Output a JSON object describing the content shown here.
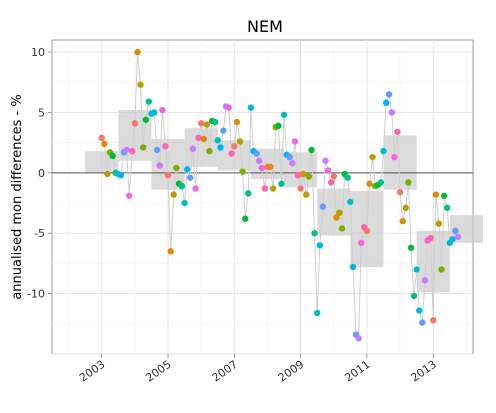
{
  "chart_data": {
    "type": "scatter",
    "title": "NEM",
    "xlabel": "",
    "ylabel": "annualised mon differences - %",
    "xlim": [
      2001.5,
      2014.2
    ],
    "ylim": [
      -15,
      11
    ],
    "x_ticks": [
      2003,
      2005,
      2007,
      2009,
      2011,
      2013
    ],
    "y_ticks": [
      -10,
      -5,
      0,
      5,
      10
    ],
    "grid": true,
    "reference_line": 0,
    "legend": "none",
    "annual_bands": [
      {
        "year": 2003,
        "y_min": 0,
        "y_max": 1.8
      },
      {
        "year": 2004,
        "y_min": 1,
        "y_max": 5.2
      },
      {
        "year": 2005,
        "y_min": -1.4,
        "y_max": 2.8
      },
      {
        "year": 2006,
        "y_min": 0.5,
        "y_max": 3.7
      },
      {
        "year": 2007,
        "y_min": 0.2,
        "y_max": 2.7
      },
      {
        "year": 2008,
        "y_min": -0.5,
        "y_max": 2.0
      },
      {
        "year": 2009,
        "y_min": -1.2,
        "y_max": 1.7
      },
      {
        "year": 2010,
        "y_min": -5.2,
        "y_max": -1.3
      },
      {
        "year": 2011,
        "y_min": -7.8,
        "y_max": -1.5
      },
      {
        "year": 2012,
        "y_min": -1.4,
        "y_max": 3.1
      },
      {
        "year": 2013,
        "y_min": -9.9,
        "y_max": -4.8
      },
      {
        "year": 2014,
        "y_min": -5.8,
        "y_max": -3.5
      }
    ],
    "points": [
      {
        "x": 2003.0,
        "y": 2.9
      },
      {
        "x": 2003.08,
        "y": 2.4
      },
      {
        "x": 2003.17,
        "y": -0.1
      },
      {
        "x": 2003.25,
        "y": 1.7
      },
      {
        "x": 2003.33,
        "y": 1.4
      },
      {
        "x": 2003.42,
        "y": 0
      },
      {
        "x": 2003.5,
        "y": -0.1
      },
      {
        "x": 2003.58,
        "y": -0.2
      },
      {
        "x": 2003.67,
        "y": 1.7
      },
      {
        "x": 2003.75,
        "y": 1.9
      },
      {
        "x": 2003.83,
        "y": -1.9
      },
      {
        "x": 2003.92,
        "y": 1.8
      },
      {
        "x": 2004.0,
        "y": 4.1
      },
      {
        "x": 2004.08,
        "y": 10
      },
      {
        "x": 2004.17,
        "y": 7.3
      },
      {
        "x": 2004.25,
        "y": 2.1
      },
      {
        "x": 2004.33,
        "y": 4.4
      },
      {
        "x": 2004.42,
        "y": 5.9
      },
      {
        "x": 2004.5,
        "y": 4.9
      },
      {
        "x": 2004.58,
        "y": 5.0
      },
      {
        "x": 2004.67,
        "y": 1.9
      },
      {
        "x": 2004.75,
        "y": 0.6
      },
      {
        "x": 2004.83,
        "y": 5.2
      },
      {
        "x": 2004.92,
        "y": 2.2
      },
      {
        "x": 2005.0,
        "y": -0.2
      },
      {
        "x": 2005.08,
        "y": -6.5
      },
      {
        "x": 2005.17,
        "y": -1.8
      },
      {
        "x": 2005.25,
        "y": 0.4
      },
      {
        "x": 2005.33,
        "y": -0.9
      },
      {
        "x": 2005.42,
        "y": -1.1
      },
      {
        "x": 2005.5,
        "y": -2.5
      },
      {
        "x": 2005.58,
        "y": 0.3
      },
      {
        "x": 2005.67,
        "y": -0.4
      },
      {
        "x": 2005.75,
        "y": 2.0
      },
      {
        "x": 2005.83,
        "y": -1.3
      },
      {
        "x": 2005.92,
        "y": 2.9
      },
      {
        "x": 2006.0,
        "y": 4.1
      },
      {
        "x": 2006.08,
        "y": 2.8
      },
      {
        "x": 2006.17,
        "y": 4.0
      },
      {
        "x": 2006.25,
        "y": 1.8
      },
      {
        "x": 2006.33,
        "y": 4.3
      },
      {
        "x": 2006.42,
        "y": 4.2
      },
      {
        "x": 2006.5,
        "y": 2.7
      },
      {
        "x": 2006.58,
        "y": 2.1
      },
      {
        "x": 2006.67,
        "y": 3.5
      },
      {
        "x": 2006.75,
        "y": 5.5
      },
      {
        "x": 2006.83,
        "y": 5.4
      },
      {
        "x": 2006.92,
        "y": 1.6
      },
      {
        "x": 2007.0,
        "y": 2.2
      },
      {
        "x": 2007.08,
        "y": 4.2
      },
      {
        "x": 2007.17,
        "y": 2.6
      },
      {
        "x": 2007.25,
        "y": 0.1
      },
      {
        "x": 2007.33,
        "y": -3.8
      },
      {
        "x": 2007.42,
        "y": -1.7
      },
      {
        "x": 2007.5,
        "y": 5.4
      },
      {
        "x": 2007.58,
        "y": 1.8
      },
      {
        "x": 2007.67,
        "y": 1.6
      },
      {
        "x": 2007.75,
        "y": 1.0
      },
      {
        "x": 2007.83,
        "y": 0.4
      },
      {
        "x": 2007.92,
        "y": -1.3
      },
      {
        "x": 2008.0,
        "y": 0.5
      },
      {
        "x": 2008.08,
        "y": 0.5
      },
      {
        "x": 2008.17,
        "y": -1.3
      },
      {
        "x": 2008.25,
        "y": 3.8
      },
      {
        "x": 2008.33,
        "y": 3.9
      },
      {
        "x": 2008.42,
        "y": -0.9
      },
      {
        "x": 2008.5,
        "y": 4.8
      },
      {
        "x": 2008.58,
        "y": 1.5
      },
      {
        "x": 2008.67,
        "y": 1.3
      },
      {
        "x": 2008.75,
        "y": 0.8
      },
      {
        "x": 2008.83,
        "y": 2.6
      },
      {
        "x": 2008.92,
        "y": -0.2
      },
      {
        "x": 2009.0,
        "y": -1.3
      },
      {
        "x": 2009.08,
        "y": -0.1
      },
      {
        "x": 2009.17,
        "y": -1.8
      },
      {
        "x": 2009.25,
        "y": -0.3
      },
      {
        "x": 2009.33,
        "y": 1.9
      },
      {
        "x": 2009.42,
        "y": -5.0
      },
      {
        "x": 2009.5,
        "y": -11.6
      },
      {
        "x": 2009.58,
        "y": -6.0
      },
      {
        "x": 2009.67,
        "y": -2.8
      },
      {
        "x": 2009.75,
        "y": 1.0
      },
      {
        "x": 2009.83,
        "y": 0.2
      },
      {
        "x": 2009.92,
        "y": -0.8
      },
      {
        "x": 2010.0,
        "y": -0.3
      },
      {
        "x": 2010.08,
        "y": -3.7
      },
      {
        "x": 2010.17,
        "y": -3.3
      },
      {
        "x": 2010.25,
        "y": -4.6
      },
      {
        "x": 2010.33,
        "y": -0.1
      },
      {
        "x": 2010.42,
        "y": -0.4
      },
      {
        "x": 2010.5,
        "y": -2.4
      },
      {
        "x": 2010.58,
        "y": -7.8
      },
      {
        "x": 2010.67,
        "y": -13.4
      },
      {
        "x": 2010.75,
        "y": -13.7
      },
      {
        "x": 2010.83,
        "y": -5.8
      },
      {
        "x": 2010.92,
        "y": -4.5
      },
      {
        "x": 2011.0,
        "y": -4.8
      },
      {
        "x": 2011.08,
        "y": -0.9
      },
      {
        "x": 2011.17,
        "y": 1.3
      },
      {
        "x": 2011.25,
        "y": -1.1
      },
      {
        "x": 2011.33,
        "y": -1.0
      },
      {
        "x": 2011.42,
        "y": -0.8
      },
      {
        "x": 2011.5,
        "y": 1.8
      },
      {
        "x": 2011.58,
        "y": 5.8
      },
      {
        "x": 2011.67,
        "y": 6.5
      },
      {
        "x": 2011.75,
        "y": 5.0
      },
      {
        "x": 2011.83,
        "y": 1.3
      },
      {
        "x": 2011.92,
        "y": 3.4
      },
      {
        "x": 2012.0,
        "y": -1.6
      },
      {
        "x": 2012.08,
        "y": -4.0
      },
      {
        "x": 2012.17,
        "y": -2.9
      },
      {
        "x": 2012.25,
        "y": -0.8
      },
      {
        "x": 2012.33,
        "y": -6.2
      },
      {
        "x": 2012.42,
        "y": -10.2
      },
      {
        "x": 2012.5,
        "y": -8.0
      },
      {
        "x": 2012.58,
        "y": -11.4
      },
      {
        "x": 2012.67,
        "y": -12.4
      },
      {
        "x": 2012.75,
        "y": -8.9
      },
      {
        "x": 2012.83,
        "y": -5.6
      },
      {
        "x": 2012.92,
        "y": -5.4
      },
      {
        "x": 2013.0,
        "y": -12.2
      },
      {
        "x": 2013.08,
        "y": -1.8
      },
      {
        "x": 2013.17,
        "y": -4.2
      },
      {
        "x": 2013.25,
        "y": -8.0
      },
      {
        "x": 2013.33,
        "y": -1.9
      },
      {
        "x": 2013.42,
        "y": -2.9
      },
      {
        "x": 2013.5,
        "y": -5.8
      },
      {
        "x": 2013.58,
        "y": -5.5
      },
      {
        "x": 2013.67,
        "y": -4.8
      },
      {
        "x": 2013.75,
        "y": -5.3
      }
    ],
    "month_colors": [
      "#F8766D",
      "#DE8C00",
      "#B79F00",
      "#7CAE00",
      "#00BA38",
      "#00C08B",
      "#00BFC4",
      "#00B4F0",
      "#619CFF",
      "#C77CFF",
      "#F564E3",
      "#FF64B0"
    ]
  }
}
